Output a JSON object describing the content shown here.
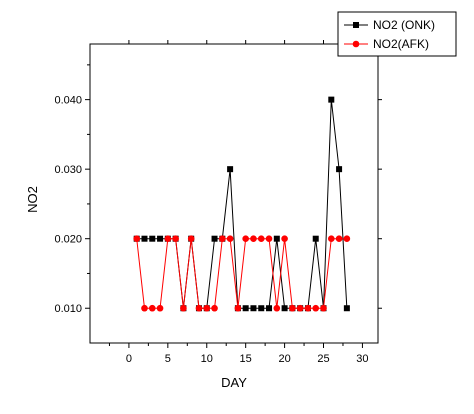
{
  "chart_data": {
    "type": "line",
    "xlabel": "DAY",
    "ylabel": "NO2",
    "xlim": [
      -5,
      32
    ],
    "ylim": [
      0.005,
      0.048
    ],
    "x_ticks": [
      0,
      5,
      10,
      15,
      20,
      25,
      30
    ],
    "y_ticks": [
      0.01,
      0.02,
      0.03,
      0.04
    ],
    "y_tick_labels": [
      "0.010",
      "0.020",
      "0.030",
      "0.040"
    ],
    "grid": false,
    "legend_position": "top-right",
    "series": [
      {
        "name": "NO2 (ONK)",
        "color": "#000000",
        "marker": "square",
        "x": [
          1,
          2,
          3,
          4,
          5,
          6,
          7,
          8,
          9,
          10,
          11,
          12,
          13,
          14,
          15,
          16,
          17,
          18,
          19,
          20,
          21,
          22,
          23,
          24,
          25,
          26,
          27,
          28
        ],
        "y": [
          0.02,
          0.02,
          0.02,
          0.02,
          0.02,
          0.02,
          0.01,
          0.02,
          0.01,
          0.01,
          0.02,
          0.02,
          0.03,
          0.01,
          0.01,
          0.01,
          0.01,
          0.01,
          0.02,
          0.01,
          0.01,
          0.01,
          0.01,
          0.02,
          0.01,
          0.04,
          0.03,
          0.01
        ]
      },
      {
        "name": "NO2(AFK)",
        "color": "#ff0000",
        "marker": "circle",
        "x": [
          1,
          2,
          3,
          4,
          5,
          6,
          7,
          8,
          9,
          10,
          11,
          12,
          13,
          14,
          15,
          16,
          17,
          18,
          19,
          20,
          21,
          22,
          23,
          24,
          25,
          26,
          27,
          28
        ],
        "y": [
          0.02,
          0.01,
          0.01,
          0.01,
          0.02,
          0.02,
          0.01,
          0.02,
          0.01,
          0.01,
          0.01,
          0.02,
          0.02,
          0.01,
          0.02,
          0.02,
          0.02,
          0.02,
          0.01,
          0.02,
          0.01,
          0.01,
          0.01,
          0.01,
          0.01,
          0.02,
          0.02,
          0.02
        ]
      }
    ]
  }
}
